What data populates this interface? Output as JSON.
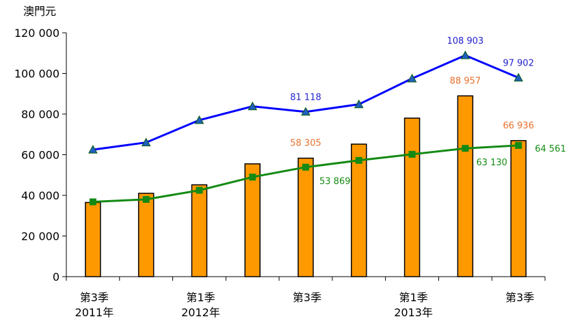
{
  "chart_data": {
    "type": "bar+line",
    "unit_label": "澳門元",
    "ylim": [
      0,
      120000
    ],
    "y_ticks": [
      "0",
      "20 000",
      "40 000",
      "60 000",
      "80 000",
      "100 000",
      "120 000"
    ],
    "y_tick_values": [
      0,
      20000,
      40000,
      60000,
      80000,
      100000,
      120000
    ],
    "x_labels": [
      {
        "index": 0,
        "line1": "第3季",
        "line2": "2011年"
      },
      {
        "index": 2,
        "line1": "第1季",
        "line2": "2012年"
      },
      {
        "index": 4,
        "line1": "第3季",
        "line2": ""
      },
      {
        "index": 6,
        "line1": "第1季",
        "line2": "2013年"
      },
      {
        "index": 8,
        "line1": "第3季",
        "line2": ""
      }
    ],
    "grid": false,
    "legend": "none",
    "series": [
      {
        "kind": "bar",
        "color": "#ff9900",
        "values": [
          36500,
          41000,
          45200,
          55500,
          58305,
          65200,
          78000,
          88957,
          66936
        ],
        "labels": [
          "",
          "",
          "",
          "",
          "58 305",
          "",
          "",
          "88 957",
          "66 936"
        ],
        "label_color": "#e8702a"
      },
      {
        "kind": "line",
        "marker": "triangle",
        "color": "#0000ff",
        "marker_color": "#1f5fbf",
        "values": [
          62500,
          66000,
          77000,
          83800,
          81118,
          84800,
          97500,
          108903,
          97902
        ],
        "labels": [
          "",
          "",
          "",
          "",
          "81 118",
          "",
          "",
          "108 903",
          "97 902"
        ],
        "label_color": "#2222cc"
      },
      {
        "kind": "line",
        "marker": "square",
        "color": "#138a13",
        "marker_color": "#138a13",
        "values": [
          36800,
          38000,
          42500,
          49000,
          53869,
          57200,
          60200,
          63130,
          64561
        ],
        "labels": [
          "",
          "",
          "",
          "",
          "53 869",
          "",
          "",
          "63 130",
          "64 561"
        ],
        "label_color": "#138a13"
      }
    ]
  }
}
